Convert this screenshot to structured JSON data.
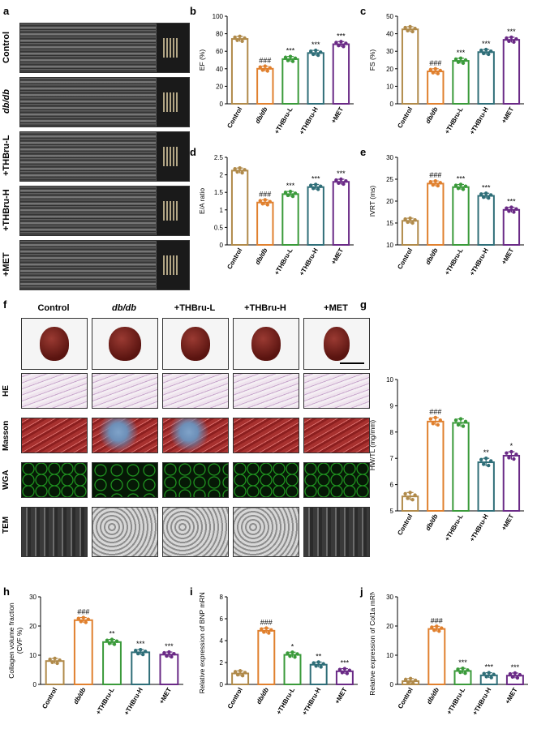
{
  "panels": {
    "a": "a",
    "b": "b",
    "c": "c",
    "d": "d",
    "e": "e",
    "f": "f",
    "g": "g",
    "h": "h",
    "i": "i",
    "j": "j"
  },
  "groups": [
    "Control",
    "db/db",
    "+THBru-L",
    "+THBru-H",
    "+MET"
  ],
  "histology_rows": [
    "HE",
    "Masson",
    "WGA",
    "TEM"
  ],
  "colors": {
    "control": "#b08a4a",
    "dbdb": "#e0802e",
    "thbru_l": "#3a9a3a",
    "thbru_h": "#2f6e78",
    "met": "#6a2a86"
  },
  "chart_data": [
    {
      "id": "b",
      "type": "bar",
      "ylabel": "EF (%)",
      "ylim": [
        0,
        100
      ],
      "ticks": [
        0,
        20,
        40,
        60,
        80,
        100
      ],
      "values": [
        74,
        40,
        51,
        58,
        68
      ],
      "sig": [
        "",
        "###",
        "***",
        "***",
        "***"
      ]
    },
    {
      "id": "c",
      "type": "bar",
      "ylabel": "FS (%)",
      "ylim": [
        0,
        50
      ],
      "ticks": [
        0,
        10,
        20,
        30,
        40,
        50
      ],
      "values": [
        42.5,
        18.5,
        24.5,
        29.5,
        36.5
      ],
      "sig": [
        "",
        "###",
        "***",
        "***",
        "***"
      ]
    },
    {
      "id": "d",
      "type": "bar",
      "ylabel": "E/A ratio",
      "ylim": [
        0,
        2.5
      ],
      "ticks": [
        0.0,
        0.5,
        1.0,
        1.5,
        2.0,
        2.5
      ],
      "values": [
        2.12,
        1.21,
        1.45,
        1.65,
        1.8
      ],
      "sig": [
        "",
        "###",
        "***",
        "***",
        "***"
      ]
    },
    {
      "id": "e",
      "type": "bar",
      "ylabel": "IVRT (ms)",
      "ylim": [
        10,
        30
      ],
      "ticks": [
        10,
        15,
        20,
        25,
        30
      ],
      "values": [
        15.5,
        24,
        23.2,
        21.2,
        18
      ],
      "sig": [
        "",
        "###",
        "***",
        "***",
        "***"
      ]
    },
    {
      "id": "g",
      "type": "bar",
      "ylabel": "HW/TL (mg/mm)",
      "ylim": [
        5,
        10
      ],
      "ticks": [
        5,
        6,
        7,
        8,
        9,
        10
      ],
      "values": [
        5.55,
        8.4,
        8.35,
        6.85,
        7.1
      ],
      "sig": [
        "",
        "###",
        "",
        "**",
        "*"
      ]
    },
    {
      "id": "h",
      "type": "bar",
      "ylabel": "Collagen volume fraction (CVF %)",
      "ylim": [
        0,
        30
      ],
      "ticks": [
        0,
        10,
        20,
        30
      ],
      "values": [
        8,
        22,
        14.5,
        11,
        10.2
      ],
      "sig": [
        "",
        "###",
        "**",
        "***",
        "***"
      ]
    },
    {
      "id": "i",
      "type": "bar",
      "ylabel": "Relative expression of BNP mRNA",
      "ylim": [
        0,
        8
      ],
      "ticks": [
        0,
        2,
        4,
        6,
        8
      ],
      "values": [
        1.0,
        4.9,
        2.7,
        1.8,
        1.2
      ],
      "sig": [
        "",
        "###",
        "*",
        "**",
        "***"
      ]
    },
    {
      "id": "j",
      "type": "bar",
      "ylabel": "Relative expression of Col1a mRNA",
      "ylim": [
        0,
        30
      ],
      "ticks": [
        0,
        10,
        20,
        30
      ],
      "values": [
        1.1,
        19,
        4.6,
        3.1,
        3.0
      ],
      "sig": [
        "",
        "###",
        "***",
        "***",
        "***"
      ]
    }
  ]
}
